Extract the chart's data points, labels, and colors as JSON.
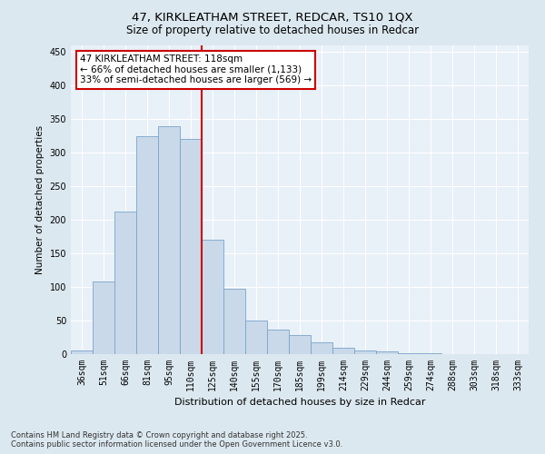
{
  "title1": "47, KIRKLEATHAM STREET, REDCAR, TS10 1QX",
  "title2": "Size of property relative to detached houses in Redcar",
  "xlabel": "Distribution of detached houses by size in Redcar",
  "ylabel": "Number of detached properties",
  "categories": [
    "36sqm",
    "51sqm",
    "66sqm",
    "81sqm",
    "95sqm",
    "110sqm",
    "125sqm",
    "140sqm",
    "155sqm",
    "170sqm",
    "185sqm",
    "199sqm",
    "214sqm",
    "229sqm",
    "244sqm",
    "259sqm",
    "274sqm",
    "288sqm",
    "303sqm",
    "318sqm",
    "333sqm"
  ],
  "values": [
    6,
    108,
    212,
    325,
    340,
    320,
    170,
    98,
    50,
    36,
    28,
    17,
    10,
    5,
    4,
    1,
    1,
    0.5,
    0.5,
    0.5,
    0.5
  ],
  "bar_color": "#c9d9ea",
  "bar_edge_color": "#7ba3c8",
  "vline_color": "#cc0000",
  "annotation_title": "47 KIRKLEATHAM STREET: 118sqm",
  "annotation_line1": "← 66% of detached houses are smaller (1,133)",
  "annotation_line2": "33% of semi-detached houses are larger (569) →",
  "annotation_box_edgecolor": "#cc0000",
  "ylim": [
    0,
    460
  ],
  "yticks": [
    0,
    50,
    100,
    150,
    200,
    250,
    300,
    350,
    400,
    450
  ],
  "footer1": "Contains HM Land Registry data © Crown copyright and database right 2025.",
  "footer2": "Contains public sector information licensed under the Open Government Licence v3.0.",
  "bg_color": "#dce8f0",
  "plot_bg_color": "#e8f0f8",
  "grid_color": "#ffffff",
  "title1_fontsize": 9.5,
  "title2_fontsize": 8.5,
  "xlabel_fontsize": 8,
  "ylabel_fontsize": 7.5,
  "tick_fontsize": 7,
  "footer_fontsize": 6,
  "annot_fontsize": 7.5
}
